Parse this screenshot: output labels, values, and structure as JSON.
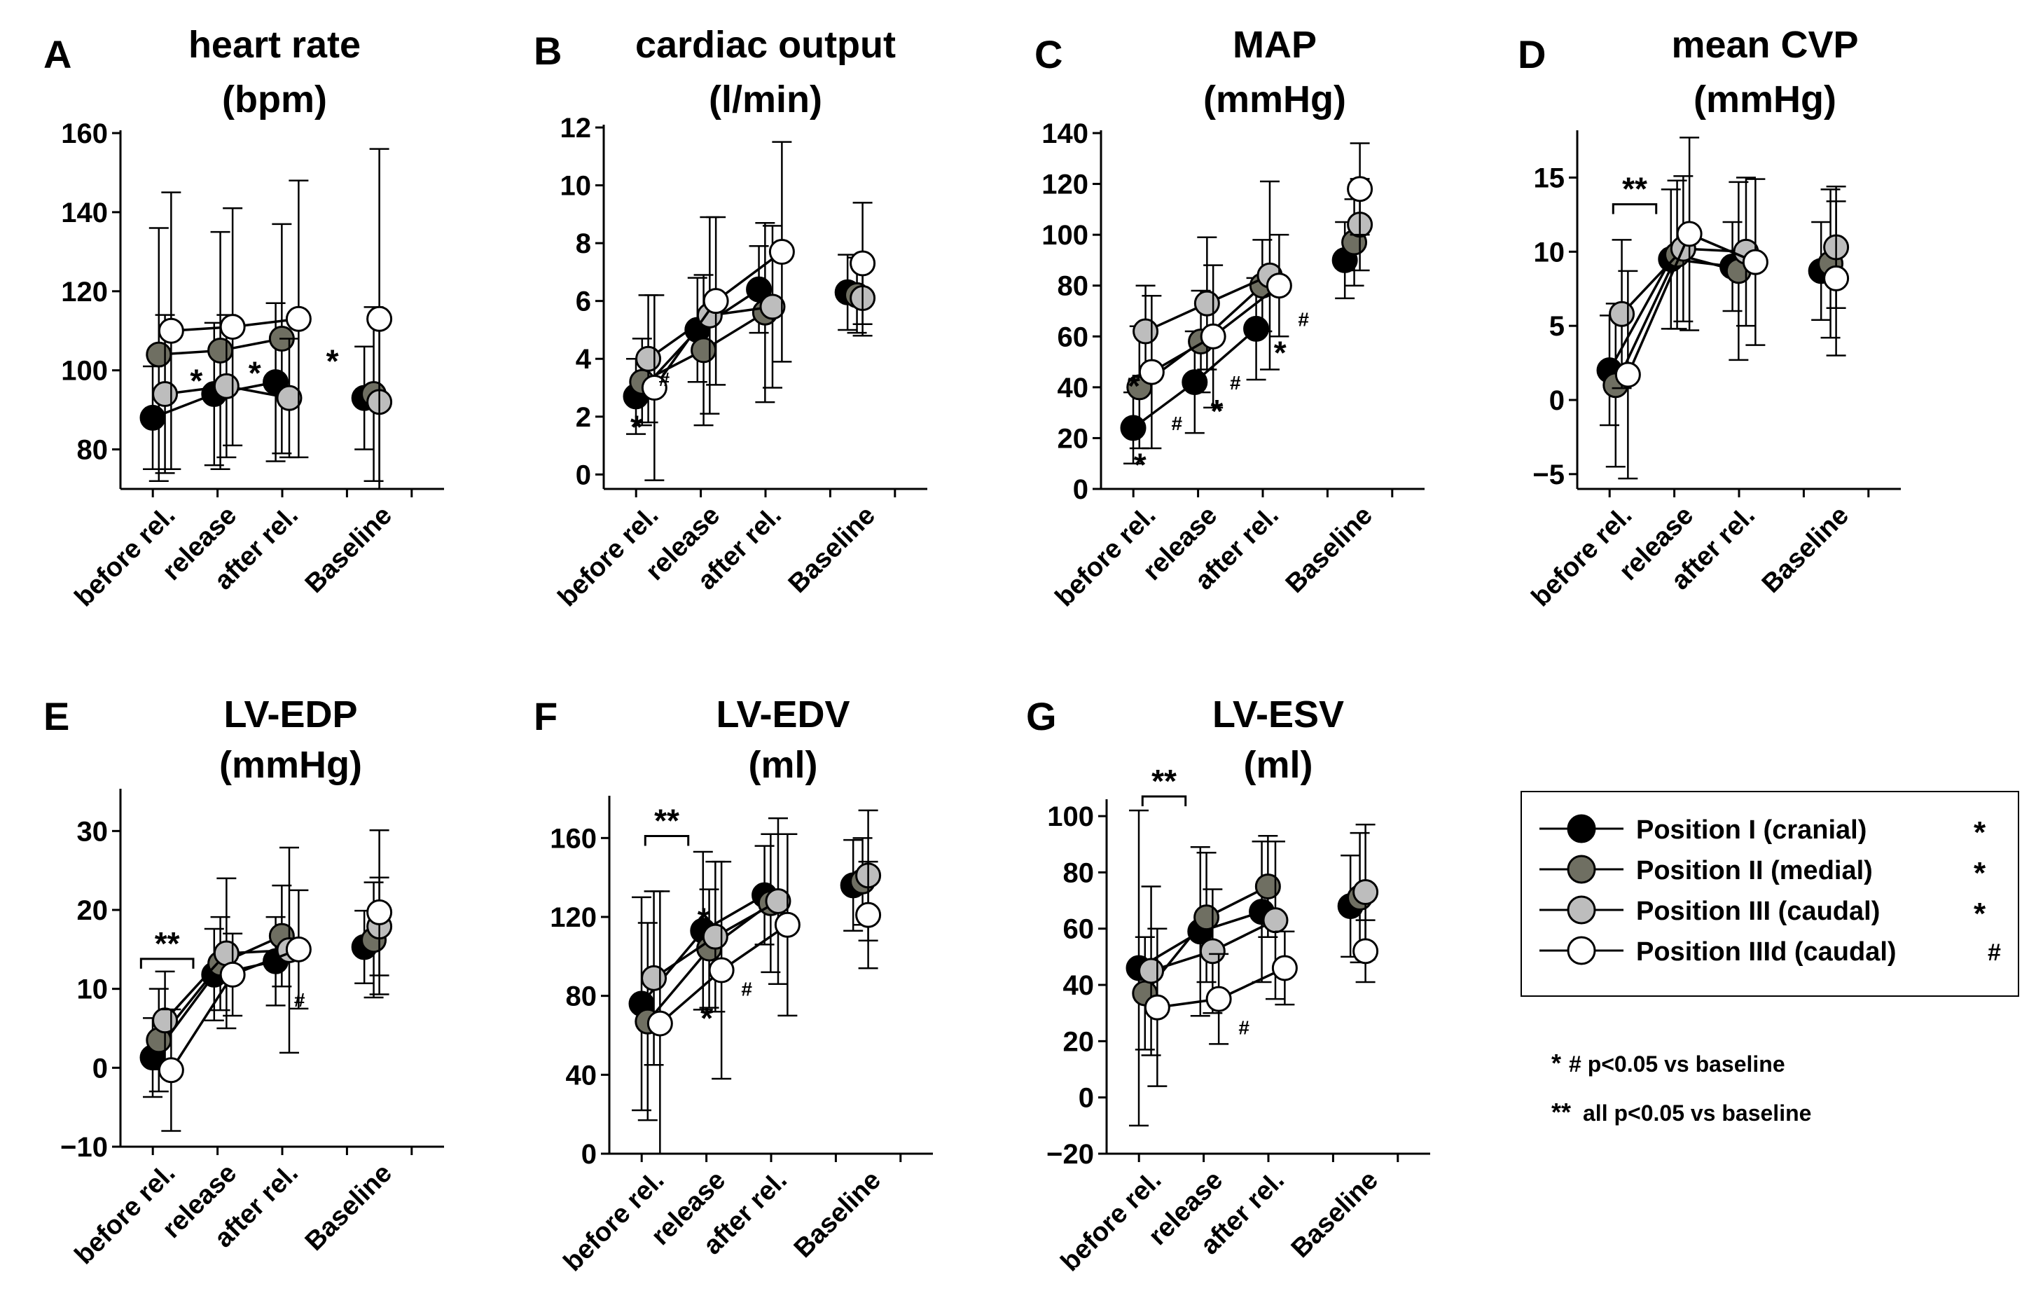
{
  "colors": {
    "position_I": "#000000",
    "position_II": "#6f6f62",
    "position_III": "#bdbdbd",
    "position_IIId": "#ffffff",
    "sig_position_II": "#7f7f70",
    "sig_position_III": "#b3b3b3"
  },
  "legend": {
    "entries": [
      {
        "label": "Position I (cranial)",
        "mark": "*"
      },
      {
        "label": "Position II (medial)",
        "mark": "*"
      },
      {
        "label": "Position III (caudal)",
        "mark": "*"
      },
      {
        "label": "Position IIId (caudal)",
        "mark": "#"
      }
    ],
    "notes": [
      {
        "mark": "*",
        "text": "# p<0.05 vs baseline"
      },
      {
        "mark": "**",
        "text": "all p<0.05 vs baseline"
      }
    ]
  },
  "chart_data": [
    {
      "panel": "A",
      "type": "line",
      "title_line1": "heart rate",
      "title_line2": "(bpm)",
      "categories": [
        "before rel.",
        "release",
        "after rel.",
        "Baseline"
      ],
      "ylim": [
        70,
        160
      ],
      "yticks": [
        80,
        100,
        120,
        140,
        160
      ],
      "series": [
        {
          "name": "Position I (cranial)",
          "values": [
            88,
            94,
            97,
            93
          ],
          "err": [
            13,
            18,
            20,
            13
          ]
        },
        {
          "name": "Position II (medial)",
          "values": [
            104,
            105,
            108,
            94
          ],
          "err": [
            32,
            30,
            29,
            22
          ]
        },
        {
          "name": "Position III (caudal)",
          "values": [
            94,
            96,
            93,
            92
          ],
          "err": [
            20,
            18,
            15,
            22
          ]
        },
        {
          "name": "Position IIId (caudal)",
          "values": [
            110,
            111,
            113,
            113
          ],
          "err": [
            35,
            30,
            35,
            43
          ]
        }
      ],
      "annotations": [
        {
          "text": "*",
          "color": "sig_position_III",
          "cat": 0.55,
          "y": 97
        },
        {
          "text": "*",
          "color": "sig_position_II",
          "cat": 1.5,
          "y": 99
        },
        {
          "text": "*",
          "color": "sig_position_III",
          "cat": 2.5,
          "y": 102
        }
      ]
    },
    {
      "panel": "B",
      "type": "line",
      "title_line1": "cardiac output",
      "title_line2": "(l/min)",
      "categories": [
        "before rel.",
        "release",
        "after rel.",
        "Baseline"
      ],
      "ylim": [
        -0.5,
        12
      ],
      "yticks": [
        0,
        2,
        4,
        6,
        8,
        10,
        12
      ],
      "series": [
        {
          "name": "Position I (cranial)",
          "values": [
            2.7,
            5.0,
            6.4,
            6.3
          ],
          "err": [
            1.3,
            1.8,
            1.5,
            1.3
          ]
        },
        {
          "name": "Position II (medial)",
          "values": [
            3.2,
            4.3,
            5.6,
            6.2
          ],
          "err": [
            1.5,
            2.6,
            3.1,
            1.3
          ]
        },
        {
          "name": "Position III (caudal)",
          "values": [
            4.0,
            5.5,
            5.8,
            6.1
          ],
          "err": [
            2.2,
            3.4,
            2.8,
            1.3
          ]
        },
        {
          "name": "Position IIId (caudal)",
          "values": [
            3.0,
            6.0,
            7.7,
            7.3
          ],
          "err": [
            3.2,
            2.9,
            3.8,
            2.1
          ]
        }
      ],
      "annotations": [
        {
          "text": "*",
          "color": "position_I",
          "cat": -0.15,
          "y": 1.6
        },
        {
          "text": "#",
          "color": "position_I",
          "cat": 0.3,
          "y": 3.4
        }
      ]
    },
    {
      "panel": "C",
      "type": "line",
      "title_line1": "MAP",
      "title_line2": "(mmHg)",
      "categories": [
        "before rel.",
        "release",
        "after rel.",
        "Baseline"
      ],
      "ylim": [
        0,
        140
      ],
      "yticks": [
        0,
        20,
        40,
        60,
        80,
        100,
        120,
        140
      ],
      "series": [
        {
          "name": "Position I (cranial)",
          "values": [
            24,
            42,
            63,
            90
          ],
          "err": [
            14,
            20,
            20,
            15
          ]
        },
        {
          "name": "Position II (medial)",
          "values": [
            40,
            58,
            80,
            97
          ],
          "err": [
            24,
            20,
            18,
            17
          ]
        },
        {
          "name": "Position III (caudal)",
          "values": [
            62,
            73,
            84,
            104
          ],
          "err": [
            18,
            26,
            37,
            18
          ]
        },
        {
          "name": "Position IIId (caudal)",
          "values": [
            46,
            60,
            80,
            118
          ],
          "err": [
            30,
            28,
            20,
            18
          ]
        }
      ],
      "annotations": [
        {
          "text": "*",
          "color": "sig_position_II",
          "cat": -0.15,
          "y": 40
        },
        {
          "text": "*",
          "color": "position_I",
          "cat": -0.05,
          "y": 9
        },
        {
          "text": "#",
          "color": "position_I",
          "cat": 0.55,
          "y": 27
        },
        {
          "text": "#",
          "color": "position_I",
          "cat": 1.5,
          "y": 43
        },
        {
          "text": "*",
          "color": "position_I",
          "cat": 1.2,
          "y": 30
        },
        {
          "text": "*",
          "color": "position_I",
          "cat": 2.15,
          "y": 53
        },
        {
          "text": "#",
          "color": "position_I",
          "cat": 2.4,
          "y": 68
        }
      ]
    },
    {
      "panel": "D",
      "type": "line",
      "title_line1": "mean CVP",
      "title_line2": "(mmHg)",
      "categories": [
        "before rel.",
        "release",
        "after rel.",
        "Baseline"
      ],
      "ylim": [
        -6,
        18
      ],
      "yticks": [
        -5,
        0,
        5,
        10,
        15
      ],
      "series": [
        {
          "name": "Position I (cranial)",
          "values": [
            2.0,
            9.5,
            9.0,
            8.7
          ],
          "err": [
            3.7,
            4.7,
            3.0,
            3.3
          ]
        },
        {
          "name": "Position II (medial)",
          "values": [
            1.0,
            9.8,
            8.7,
            9.2
          ],
          "err": [
            5.5,
            5.0,
            6.0,
            5.0
          ]
        },
        {
          "name": "Position III (caudal)",
          "values": [
            5.8,
            10.2,
            10.0,
            10.3
          ],
          "err": [
            5.0,
            4.9,
            5.0,
            4.1
          ]
        },
        {
          "name": "Position IIId (caudal)",
          "values": [
            1.7,
            11.2,
            9.3,
            8.2
          ],
          "err": [
            7.0,
            6.5,
            5.6,
            5.2
          ]
        }
      ],
      "annotations": [],
      "brackets": [
        {
          "text": "**",
          "from": -0.1,
          "to": 0.6,
          "y": 13.2
        }
      ]
    },
    {
      "panel": "E",
      "type": "line",
      "title_line1": "LV-EDP",
      "title_line2": "(mmHg)",
      "categories": [
        "before rel.",
        "release",
        "after rel.",
        "Baseline"
      ],
      "ylim": [
        -10,
        35
      ],
      "yticks": [
        -10,
        0,
        10,
        20,
        30
      ],
      "series": [
        {
          "name": "Position I (cranial)",
          "values": [
            1.3,
            11.8,
            13.5,
            15.3
          ],
          "err": [
            5.0,
            5.8,
            5.6,
            4.6
          ]
        },
        {
          "name": "Position II (medial)",
          "values": [
            3.5,
            13.2,
            16.7,
            16.2
          ],
          "err": [
            6.5,
            5.9,
            6.4,
            7.3
          ]
        },
        {
          "name": "Position III (caudal)",
          "values": [
            6.0,
            14.5,
            14.9,
            17.9
          ],
          "err": [
            6.2,
            9.5,
            13.0,
            6.2
          ]
        },
        {
          "name": "Position IIId (caudal)",
          "values": [
            -0.3,
            11.8,
            15.0,
            19.7
          ],
          "err": [
            7.7,
            5.2,
            7.5,
            10.4
          ]
        }
      ],
      "annotations": [
        {
          "text": "#",
          "color": "position_I",
          "cat": 2.15,
          "y": 9
        }
      ],
      "brackets": [
        {
          "text": "**",
          "from": -0.35,
          "to": 0.5,
          "y": 13.8
        }
      ]
    },
    {
      "panel": "F",
      "type": "line",
      "title_line1": "LV-EDV",
      "title_line2": "(ml)",
      "categories": [
        "before rel.",
        "release",
        "after rel.",
        "Baseline"
      ],
      "ylim": [
        0,
        180
      ],
      "yticks": [
        0,
        40,
        80,
        120,
        160
      ],
      "series": [
        {
          "name": "Position I (cranial)",
          "values": [
            76,
            113,
            131,
            136
          ],
          "err": [
            54,
            40,
            25,
            23
          ]
        },
        {
          "name": "Position II (medial)",
          "values": [
            67,
            104,
            127,
            138
          ],
          "err": [
            50,
            30,
            35,
            22
          ]
        },
        {
          "name": "Position III (caudal)",
          "values": [
            89,
            110,
            128,
            141
          ],
          "err": [
            44,
            38,
            42,
            33
          ]
        },
        {
          "name": "Position IIId (caudal)",
          "values": [
            66,
            93,
            116,
            121
          ],
          "err": [
            67,
            55,
            46,
            27
          ]
        }
      ],
      "annotations": [
        {
          "text": "*",
          "color": "position_I",
          "cat": 0.85,
          "y": 118
        },
        {
          "text": "*",
          "color": "sig_position_II",
          "cat": 0.9,
          "y": 68
        },
        {
          "text": "#",
          "color": "position_I",
          "cat": 1.55,
          "y": 85
        }
      ],
      "brackets": [
        {
          "text": "**",
          "from": -0.1,
          "to": 0.6,
          "y": 161
        }
      ]
    },
    {
      "panel": "G",
      "type": "line",
      "title_line1": "LV-ESV",
      "title_line2": "(ml)",
      "categories": [
        "before rel.",
        "release",
        "after rel.",
        "Baseline"
      ],
      "ylim": [
        -20,
        105
      ],
      "yticks": [
        -20,
        0,
        20,
        40,
        60,
        80,
        100
      ],
      "series": [
        {
          "name": "Position I (cranial)",
          "values": [
            46,
            59,
            66,
            68
          ],
          "err": [
            56,
            30,
            25,
            18
          ]
        },
        {
          "name": "Position II (medial)",
          "values": [
            37,
            64,
            75,
            71
          ],
          "err": [
            20,
            23,
            18,
            23
          ]
        },
        {
          "name": "Position III (caudal)",
          "values": [
            45,
            52,
            63,
            73
          ],
          "err": [
            30,
            22,
            28,
            24
          ]
        },
        {
          "name": "Position IIId (caudal)",
          "values": [
            32,
            35,
            46,
            52
          ],
          "err": [
            28,
            16,
            13,
            11
          ]
        }
      ],
      "annotations": [
        {
          "text": "#",
          "color": "position_I",
          "cat": 1.55,
          "y": 26
        }
      ],
      "brackets": [
        {
          "text": "**",
          "from": -0.1,
          "to": 0.6,
          "y": 107
        }
      ]
    }
  ]
}
